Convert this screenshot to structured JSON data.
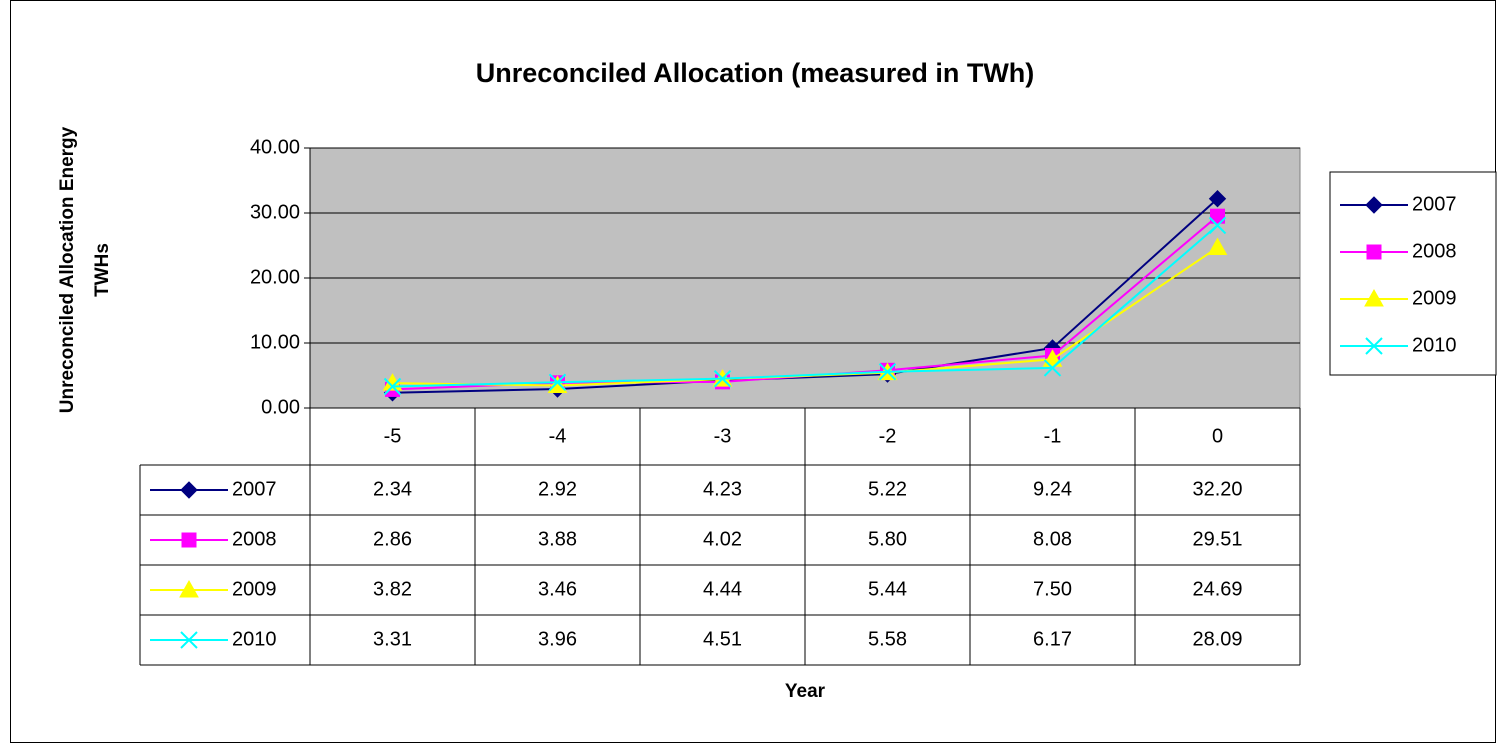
{
  "chart_data": {
    "type": "line",
    "title": "Unreconciled Allocation (measured in TWh)",
    "y_label": [
      "Unreconciled Allocation Energy",
      "TWHs"
    ],
    "x_label": "Year",
    "categories": [
      "-5",
      "-4",
      "-3",
      "-2",
      "-1",
      "0"
    ],
    "series": [
      {
        "name": "2007",
        "color": "#000080",
        "marker": "diamond",
        "values": [
          2.34,
          2.92,
          4.23,
          5.22,
          9.24,
          32.2
        ],
        "value_labels": [
          "2.34",
          "2.92",
          "4.23",
          "5.22",
          "9.24",
          "32.20"
        ]
      },
      {
        "name": "2008",
        "color": "#FF00FF",
        "marker": "square",
        "values": [
          2.86,
          3.88,
          4.02,
          5.8,
          8.08,
          29.51
        ],
        "value_labels": [
          "2.86",
          "3.88",
          "4.02",
          "5.80",
          "8.08",
          "29.51"
        ]
      },
      {
        "name": "2009",
        "color": "#FFFF00",
        "marker": "triangle",
        "values": [
          3.82,
          3.46,
          4.44,
          5.44,
          7.5,
          24.69
        ],
        "value_labels": [
          "3.82",
          "3.46",
          "4.44",
          "5.44",
          "7.50",
          "24.69"
        ]
      },
      {
        "name": "2010",
        "color": "#00FFFF",
        "marker": "x",
        "values": [
          3.31,
          3.96,
          4.51,
          5.58,
          6.17,
          28.09
        ],
        "value_labels": [
          "3.31",
          "3.96",
          "4.51",
          "5.58",
          "6.17",
          "28.09"
        ]
      }
    ],
    "ylim": [
      0,
      40
    ],
    "yticks": [
      {
        "value": 0,
        "label": "0.00"
      },
      {
        "value": 10,
        "label": "10.00"
      },
      {
        "value": 20,
        "label": "20.00"
      },
      {
        "value": 30,
        "label": "30.00"
      },
      {
        "value": 40,
        "label": "40.00"
      }
    ],
    "grid": true,
    "plot_background": "#C0C0C0",
    "legend": "right",
    "data_table": true
  }
}
